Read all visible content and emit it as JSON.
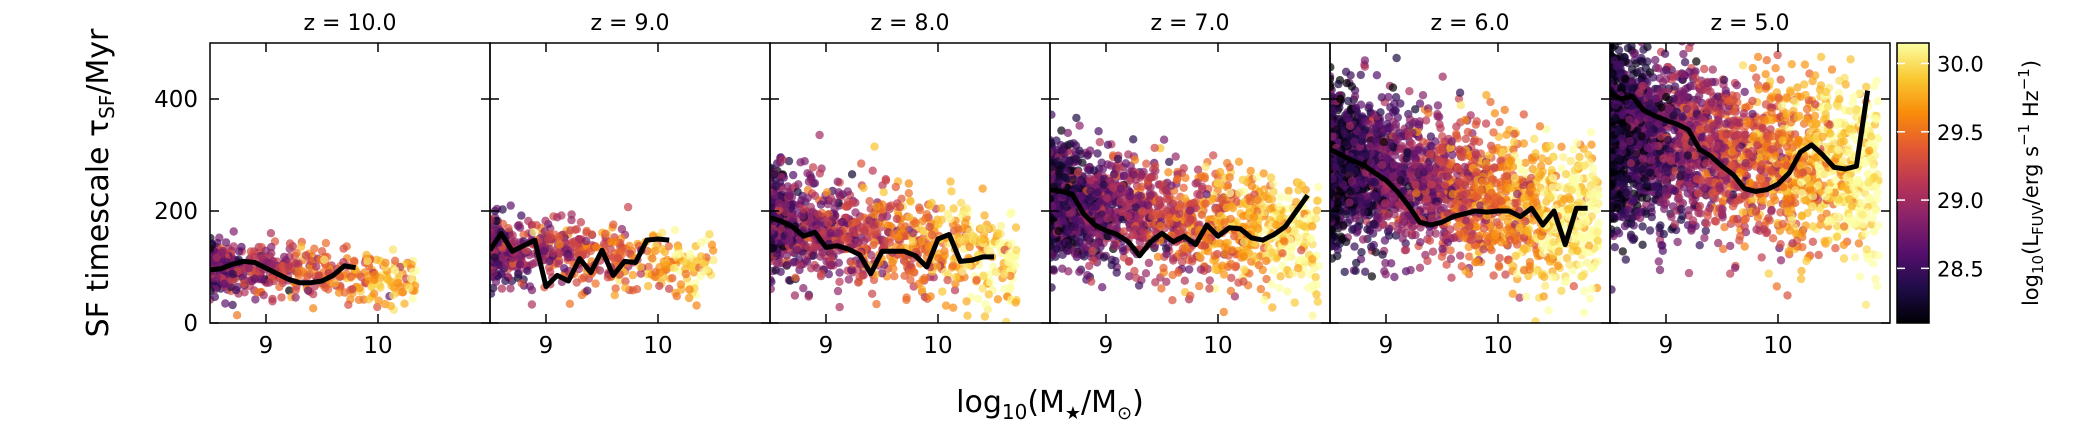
{
  "chart_data": {
    "type": "scatter",
    "ylabel_main": "SF timescale τ",
    "ylabel_sub": "SF",
    "ylabel_unit": "/Myr",
    "xlabel_pre": "log",
    "xlabel_sub": "10",
    "xlabel_main": "(M",
    "xlabel_star": "★",
    "xlabel_mid": "/M",
    "xlabel_sun": "⊙",
    "xlabel_end": ")",
    "xlim": [
      8.5,
      11.0
    ],
    "ylim": [
      0,
      500
    ],
    "xticks": [
      "9",
      "10"
    ],
    "yticks": [
      "0",
      "200",
      "400"
    ],
    "colorbar": {
      "label_pre": "log",
      "label_sub1": "10",
      "label_open": "(L",
      "label_sub2": "FUV",
      "label_unit": "/erg s",
      "label_exp1": "−1",
      "label_hz": " Hz",
      "label_exp2": "−1",
      "label_close": ")",
      "range": [
        28.1,
        30.15
      ],
      "ticks": [
        "28.5",
        "29.0",
        "29.5",
        "30.0"
      ],
      "colormap": "inferno",
      "stops": [
        "#000004",
        "#1f0c48",
        "#550f6d",
        "#88226a",
        "#ba3655",
        "#e35933",
        "#f98c0a",
        "#f9c932",
        "#fcffa4"
      ]
    },
    "panels": [
      {
        "z_label": "z = 10.0",
        "median_x": [
          8.5,
          8.6,
          8.7,
          8.8,
          8.9,
          9.0,
          9.1,
          9.2,
          9.3,
          9.4,
          9.5,
          9.6,
          9.7,
          9.8
        ],
        "median_y": [
          95,
          97,
          105,
          110,
          108,
          98,
          88,
          78,
          72,
          72,
          75,
          85,
          102,
          99
        ],
        "scatter": {
          "x_range": [
            8.5,
            10.35
          ],
          "x_peak": 8.5,
          "y_mean": 95,
          "y_spread": 22,
          "y_slope": -15,
          "n_points": 560,
          "lum_at_xmin": 28.75,
          "lum_per_dex": 0.6
        }
      },
      {
        "z_label": "z = 9.0",
        "median_x": [
          8.5,
          8.6,
          8.7,
          8.8,
          8.9,
          9.0,
          9.1,
          9.2,
          9.3,
          9.4,
          9.5,
          9.6,
          9.7,
          9.8,
          9.9,
          10.0,
          10.1
        ],
        "median_y": [
          130,
          160,
          128,
          138,
          148,
          65,
          85,
          75,
          115,
          90,
          130,
          85,
          110,
          108,
          148,
          150,
          148
        ],
        "scatter": {
          "x_range": [
            8.5,
            10.5
          ],
          "x_peak": 8.5,
          "y_mean": 125,
          "y_spread": 30,
          "y_slope": -15,
          "n_points": 600,
          "lum_at_xmin": 28.75,
          "lum_per_dex": 0.6
        }
      },
      {
        "z_label": "z = 8.0",
        "median_x": [
          8.5,
          8.6,
          8.7,
          8.8,
          8.9,
          9.0,
          9.1,
          9.2,
          9.3,
          9.4,
          9.5,
          9.6,
          9.7,
          9.8,
          9.9,
          10.0,
          10.1,
          10.2,
          10.3,
          10.4,
          10.5
        ],
        "median_y": [
          188,
          182,
          172,
          155,
          162,
          135,
          138,
          132,
          122,
          88,
          128,
          128,
          128,
          120,
          100,
          150,
          158,
          110,
          112,
          118,
          118
        ],
        "scatter": {
          "x_range": [
            8.5,
            10.7
          ],
          "x_peak": 8.5,
          "y_mean": 165,
          "y_spread": 45,
          "y_slope": -30,
          "n_points": 1100,
          "lum_at_xmin": 28.6,
          "lum_per_dex": 0.7
        }
      },
      {
        "z_label": "z = 7.0",
        "median_x": [
          8.5,
          8.6,
          8.7,
          8.8,
          8.9,
          9.0,
          9.1,
          9.2,
          9.3,
          9.4,
          9.5,
          9.6,
          9.7,
          9.8,
          9.9,
          10.0,
          10.1,
          10.2,
          10.3,
          10.4,
          10.5,
          10.6,
          10.7,
          10.8
        ],
        "median_y": [
          238,
          235,
          230,
          195,
          175,
          165,
          158,
          145,
          120,
          145,
          160,
          145,
          155,
          140,
          175,
          155,
          170,
          168,
          152,
          148,
          158,
          172,
          200,
          228
        ],
        "scatter": {
          "x_range": [
            8.5,
            10.9
          ],
          "x_peak": 8.5,
          "y_mean": 205,
          "y_spread": 50,
          "y_slope": -30,
          "n_points": 1800,
          "lum_at_xmin": 28.4,
          "lum_per_dex": 0.75
        }
      },
      {
        "z_label": "z = 6.0",
        "median_x": [
          8.5,
          8.6,
          8.7,
          8.8,
          8.9,
          9.0,
          9.1,
          9.2,
          9.3,
          9.4,
          9.5,
          9.6,
          9.7,
          9.8,
          9.9,
          10.0,
          10.1,
          10.2,
          10.3,
          10.4,
          10.5,
          10.6,
          10.7,
          10.8
        ],
        "median_y": [
          310,
          300,
          290,
          282,
          268,
          255,
          235,
          210,
          180,
          175,
          180,
          190,
          195,
          200,
          198,
          200,
          200,
          190,
          205,
          175,
          200,
          140,
          205,
          205
        ],
        "scatter": {
          "x_range": [
            8.5,
            10.9
          ],
          "x_peak": 8.5,
          "y_mean": 265,
          "y_spread": 65,
          "y_slope": -45,
          "n_points": 2600,
          "lum_at_xmin": 28.3,
          "lum_per_dex": 0.8
        }
      },
      {
        "z_label": "z = 5.0",
        "median_x": [
          8.5,
          8.6,
          8.7,
          8.8,
          8.9,
          9.0,
          9.1,
          9.2,
          9.3,
          9.4,
          9.5,
          9.6,
          9.7,
          9.8,
          9.9,
          10.0,
          10.1,
          10.2,
          10.3,
          10.4,
          10.5,
          10.6,
          10.7,
          10.8
        ],
        "median_y": [
          410,
          400,
          405,
          380,
          370,
          362,
          355,
          345,
          310,
          298,
          280,
          265,
          240,
          235,
          238,
          248,
          268,
          305,
          318,
          300,
          278,
          275,
          280,
          415
        ],
        "scatter": {
          "x_range": [
            8.5,
            10.9
          ],
          "x_peak": 8.5,
          "y_mean": 320,
          "y_spread": 75,
          "y_slope": -30,
          "n_points": 3000,
          "lum_at_xmin": 28.25,
          "lum_per_dex": 0.85
        }
      }
    ]
  }
}
